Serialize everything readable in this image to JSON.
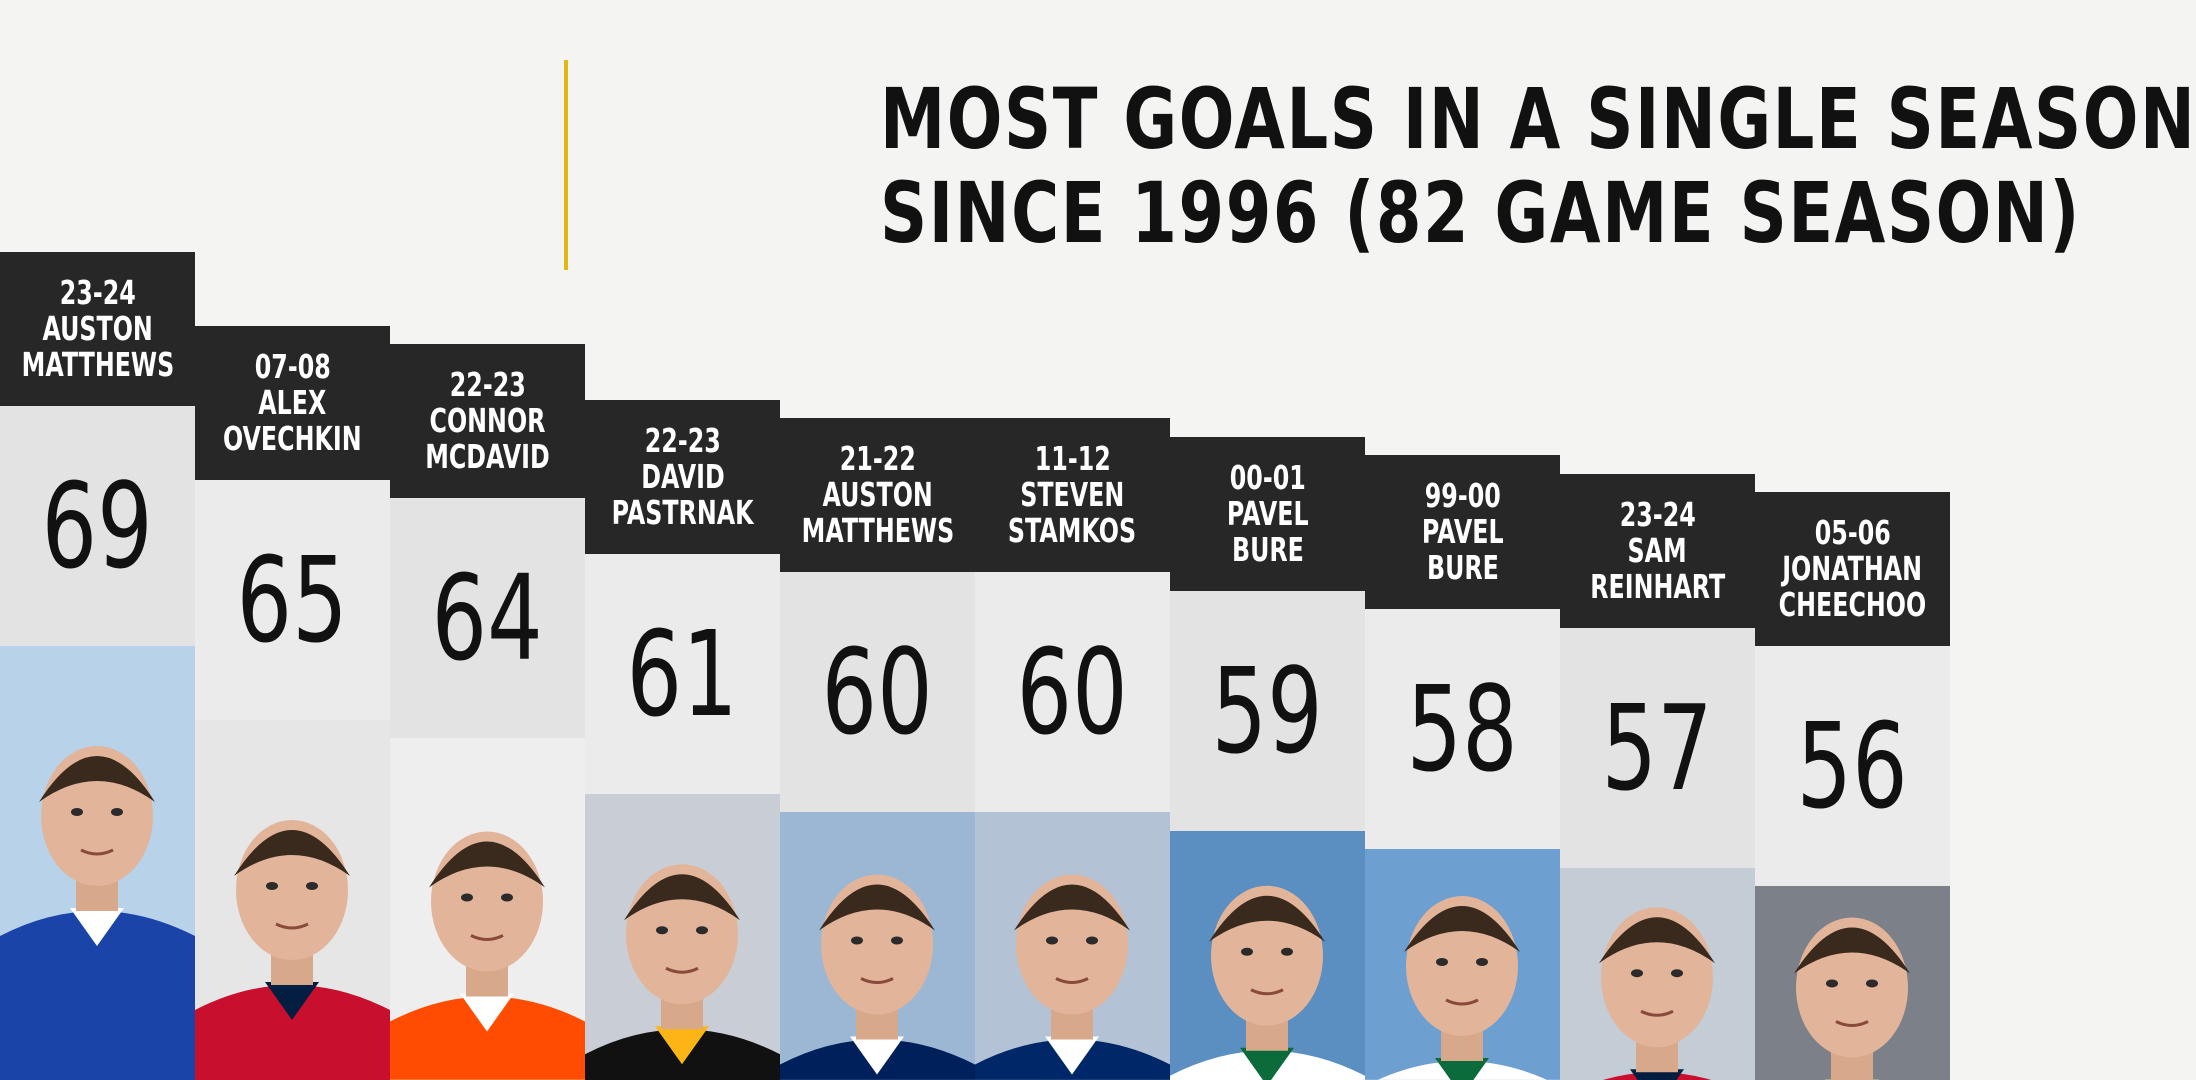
{
  "title_lines": [
    "MOST GOALS IN A SINGLE SEASON",
    "SINCE 1996 (82 GAME SEASON)"
  ],
  "colors": {
    "background": "#f4f4f2",
    "accent": "#e2b814",
    "label_bg": "#272727",
    "value_bg": "#e3e3e3"
  },
  "chart_data": {
    "type": "bar",
    "title": "MOST GOALS IN A SINGLE SEASON SINCE 1996 (82 GAME SEASON)",
    "categories": [
      "23-24 AUSTON MATTHEWS",
      "07-08 ALEX OVECHKIN",
      "22-23 CONNOR MCDAVID",
      "22-23 DAVID PASTRNAK",
      "21-22 AUSTON MATTHEWS",
      "11-12 STEVEN STAMKOS",
      "00-01 PAVEL BURE",
      "99-00 PAVEL BURE",
      "23-24 SAM REINHART",
      "05-06 JONATHAN CHEECHOO"
    ],
    "values": [
      69,
      65,
      64,
      61,
      60,
      60,
      59,
      58,
      57,
      56
    ],
    "entries": [
      {
        "season": "23-24",
        "first": "AUSTON",
        "last": "MATTHEWS",
        "goals": "69",
        "jersey": "#1a44a8",
        "accent": "#ffffff",
        "bg": "#b8d2ea"
      },
      {
        "season": "07-08",
        "first": "ALEX",
        "last": "OVECHKIN",
        "goals": "65",
        "jersey": "#c8102e",
        "accent": "#041e42",
        "bg": "#e6e6e6"
      },
      {
        "season": "22-23",
        "first": "CONNOR",
        "last": "MCDAVID",
        "goals": "64",
        "jersey": "#ff4c00",
        "accent": "#ffffff",
        "bg": "#eeeeee"
      },
      {
        "season": "22-23",
        "first": "DAVID",
        "last": "PASTRNAK",
        "goals": "61",
        "jersey": "#111111",
        "accent": "#fcb514",
        "bg": "#c9ced6"
      },
      {
        "season": "21-22",
        "first": "AUSTON",
        "last": "MATTHEWS",
        "goals": "60",
        "jersey": "#00205b",
        "accent": "#ffffff",
        "bg": "#9cb7d4"
      },
      {
        "season": "11-12",
        "first": "STEVEN",
        "last": "STAMKOS",
        "goals": "60",
        "jersey": "#002868",
        "accent": "#ffffff",
        "bg": "#b3c2d4"
      },
      {
        "season": "00-01",
        "first": "PAVEL",
        "last": "BURE",
        "goals": "59",
        "jersey": "#ffffff",
        "accent": "#0b6b3a",
        "bg": "#5b8fc2"
      },
      {
        "season": "99-00",
        "first": "PAVEL",
        "last": "BURE",
        "goals": "58",
        "jersey": "#ffffff",
        "accent": "#0b6b3a",
        "bg": "#6d9fd0"
      },
      {
        "season": "23-24",
        "first": "SAM",
        "last": "REINHART",
        "goals": "57",
        "jersey": "#c8102e",
        "accent": "#041e42",
        "bg": "#c4ccd6"
      },
      {
        "season": "05-06",
        "first": "JONATHAN",
        "last": "CHEECHOO",
        "goals": "56",
        "jersey": "#0c1f44",
        "accent": "#d8c8a0",
        "bg": "#7c8088"
      }
    ]
  }
}
